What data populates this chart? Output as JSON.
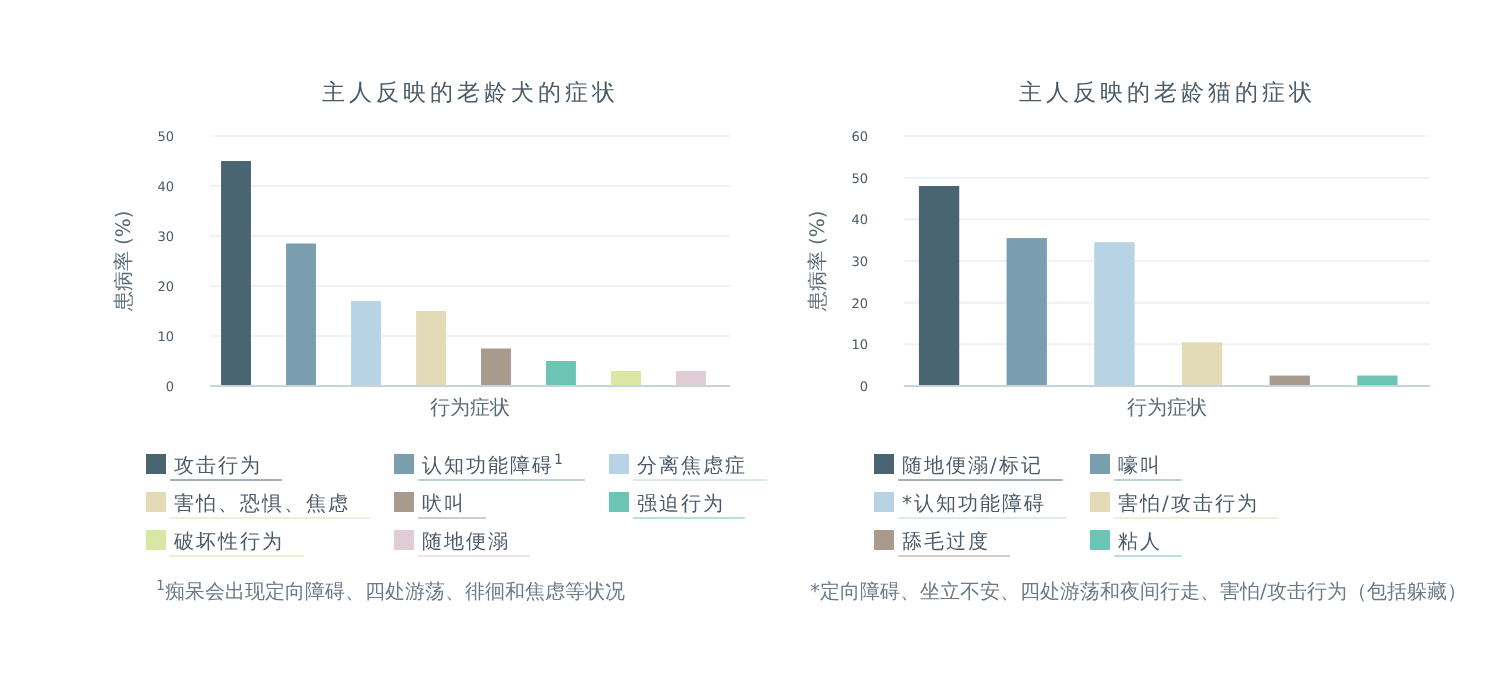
{
  "chart_data": [
    {
      "type": "bar",
      "title": "主人反映的老龄犬的症状",
      "xlabel": "行为症状",
      "ylabel": "患病率 (%)",
      "categories": [
        null,
        null,
        null,
        null,
        null,
        null,
        null,
        null
      ],
      "series": [
        {
          "name": "攻击行为",
          "color": "#4a6572",
          "values": [
            45,
            null,
            null,
            null,
            null,
            null,
            null,
            null
          ]
        },
        {
          "name": "认知功能障碍$^{1}$",
          "color": "#7a9eae",
          "values": [
            null,
            28.5,
            null,
            null,
            null,
            null,
            null,
            null
          ]
        },
        {
          "name": "分离焦虑症",
          "color": "#b8d3e4",
          "values": [
            null,
            null,
            17,
            null,
            null,
            null,
            null,
            null
          ]
        },
        {
          "name": "害怕、恐惧、焦虑",
          "color": "#e3dbb8",
          "values": [
            null,
            null,
            null,
            15,
            null,
            null,
            null,
            null
          ]
        },
        {
          "name": "吠叫",
          "color": "#a89b8e",
          "values": [
            null,
            null,
            null,
            null,
            7.5,
            null,
            null,
            null
          ]
        },
        {
          "name": "强迫行为",
          "color": "#6cc4b4",
          "values": [
            null,
            null,
            null,
            null,
            null,
            5,
            null,
            null
          ]
        },
        {
          "name": "破坏性行为",
          "color": "#d9e6a4",
          "values": [
            null,
            null,
            null,
            null,
            null,
            null,
            3,
            null
          ]
        },
        {
          "name": "随地便溺",
          "color": "#e0cdd6",
          "values": [
            null,
            null,
            null,
            null,
            null,
            null,
            null,
            3
          ]
        }
      ],
      "ylim": [
        0,
        50
      ],
      "yticks": [
        0,
        10,
        20,
        30,
        40,
        50
      ],
      "grid": "y",
      "legend": "bottom",
      "annotations": [
        "$^{1}$痴呆会出现定向障碍、四处游荡、徘徊和焦虑等状况"
      ]
    },
    {
      "type": "bar",
      "title": "主人反映的老龄猫的症状",
      "xlabel": "行为症状",
      "ylabel": "患病率 (%)",
      "categories": [
        null,
        null,
        null,
        null,
        null,
        null
      ],
      "series": [
        {
          "name": "随地便溺/标记",
          "color": "#4a6572",
          "values": [
            48,
            null,
            null,
            null,
            null,
            null
          ]
        },
        {
          "name": "嚎叫",
          "color": "#7a9eae",
          "values": [
            null,
            35.5,
            null,
            null,
            null,
            null
          ]
        },
        {
          "name": "*认知功能障碍",
          "color": "#b8d3e4",
          "values": [
            null,
            null,
            34.5,
            null,
            null,
            null
          ]
        },
        {
          "name": "害怕/攻击行为",
          "color": "#e3dbb8",
          "values": [
            null,
            null,
            null,
            10.5,
            null,
            null
          ]
        },
        {
          "name": "舔毛过度",
          "color": "#a89b8e",
          "values": [
            null,
            null,
            null,
            null,
            2.5,
            null
          ]
        },
        {
          "name": "粘人",
          "color": "#6cc4b4",
          "values": [
            null,
            null,
            null,
            null,
            null,
            2.5
          ]
        }
      ],
      "ylim": [
        0,
        60
      ],
      "yticks": [
        0,
        10,
        20,
        30,
        40,
        50,
        60
      ],
      "grid": "y",
      "legend": "bottom",
      "annotations": [
        "*定向障碍、坐立不安、四处游荡和夜间行走、害怕/攻击行为（包括躲藏）"
      ]
    }
  ]
}
